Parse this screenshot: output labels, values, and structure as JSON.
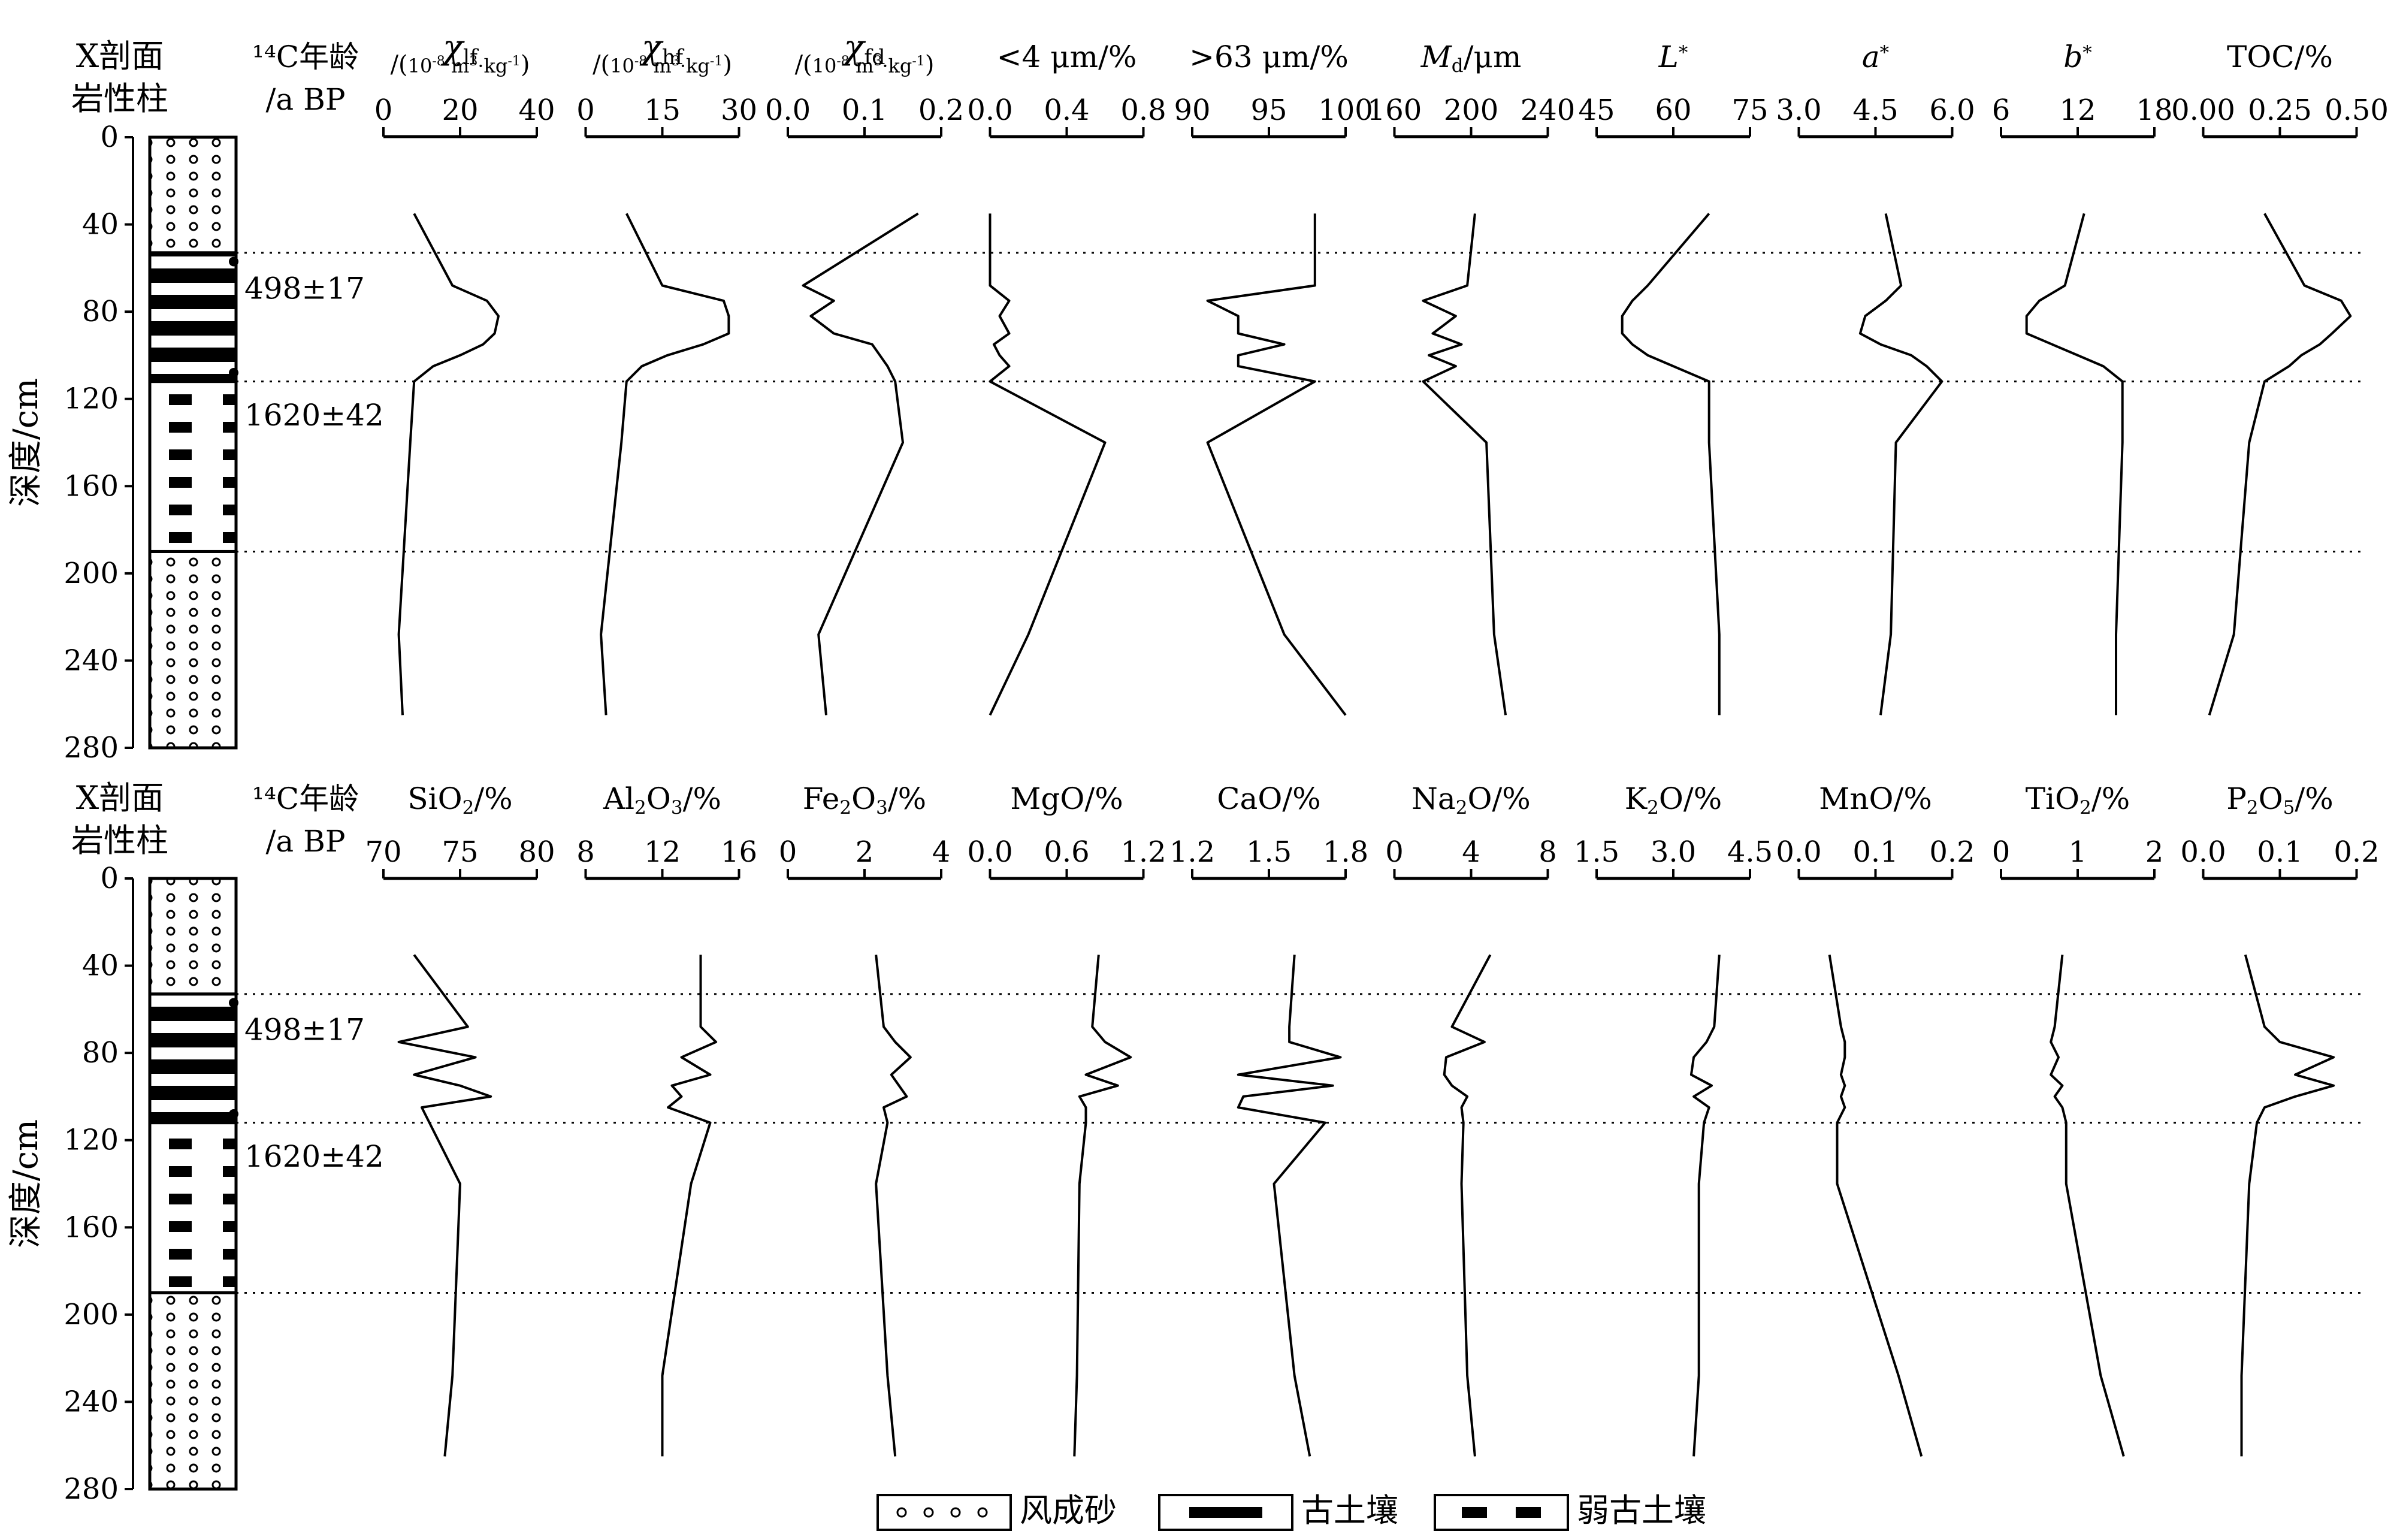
{
  "figure": {
    "section_header": [
      "X剖面",
      "岩性柱"
    ],
    "age_header": [
      "¹⁴C年龄",
      "/a BP"
    ],
    "depth_axis": {
      "label": "深度/cm",
      "ticks": [
        "0",
        "40",
        "80",
        "120",
        "160",
        "200",
        "240",
        "280"
      ]
    },
    "ages": [
      "498±17",
      "1620±42"
    ],
    "legend": {
      "aeolian": "风成砂",
      "paleosol": "古土壤",
      "weak_paleosol": "弱古土壤"
    }
  },
  "chart_data": {
    "type": "line",
    "depth_unit": "cm",
    "depth_range": [
      0,
      280
    ],
    "depth_ticks": [
      0,
      40,
      80,
      120,
      160,
      200,
      240,
      280
    ],
    "boundaries": [
      53,
      112,
      190
    ],
    "lithology": [
      {
        "top": 0,
        "bottom": 53,
        "type": "aeolian"
      },
      {
        "top": 53,
        "bottom": 112,
        "type": "paleosol"
      },
      {
        "top": 112,
        "bottom": 190,
        "type": "weak_paleosol"
      },
      {
        "top": 190,
        "bottom": 280,
        "type": "aeolian"
      }
    ],
    "ages": [
      {
        "depth": 57,
        "label": "498±17"
      },
      {
        "depth": 108,
        "label": "1620±42"
      }
    ],
    "depth": [
      35,
      68,
      75,
      82,
      90,
      95,
      100,
      105,
      112,
      140,
      228,
      265
    ],
    "panels": [
      {
        "series": [
          {
            "name": "χlf",
            "unit": "/(10⁻⁸ m³·kg⁻¹)",
            "range": [
              0,
              40
            ],
            "ticks": [
              "0",
              "20",
              "40"
            ],
            "values": [
              8,
              18,
              27,
              30,
              29,
              26,
              20,
              13,
              8,
              7,
              4,
              5
            ]
          },
          {
            "name": "χhf",
            "unit": "/(10⁻⁸ m³·kg⁻¹)",
            "range": [
              0,
              30
            ],
            "ticks": [
              "0",
              "15",
              "30"
            ],
            "values": [
              8,
              15,
              27,
              28,
              28,
              23,
              16,
              11,
              8,
              7,
              3,
              4
            ]
          },
          {
            "name": "χfd",
            "unit": "/(10⁻⁸ m³·kg⁻¹)",
            "range": [
              0,
              0.2
            ],
            "ticks": [
              "0.0",
              "0.1",
              "0.2"
            ],
            "values": [
              0.17,
              0.02,
              0.06,
              0.03,
              0.06,
              0.11,
              0.12,
              0.13,
              0.14,
              0.15,
              0.04,
              0.05
            ]
          },
          {
            "name": "<4 μm/%",
            "range": [
              0,
              0.8
            ],
            "ticks": [
              "0.0",
              "0.4",
              "0.8"
            ],
            "values": [
              0,
              0,
              0.1,
              0.05,
              0.1,
              0.02,
              0.05,
              0.1,
              0,
              0.6,
              0.2,
              0
            ]
          },
          {
            "name": ">63 μm/%",
            "range": [
              90,
              100
            ],
            "ticks": [
              "90",
              "95",
              "100"
            ],
            "values": [
              98,
              98,
              91,
              93,
              93,
              96,
              93,
              93,
              98,
              91,
              96,
              100
            ]
          },
          {
            "name": "Md/μm",
            "range": [
              160,
              240
            ],
            "ticks": [
              "160",
              "200",
              "240"
            ],
            "values": [
              202,
              198,
              175,
              192,
              180,
              195,
              178,
              192,
              175,
              208,
              212,
              218
            ]
          },
          {
            "name": "L*",
            "range": [
              45,
              75
            ],
            "ticks": [
              "45",
              "60",
              "75"
            ],
            "values": [
              67,
              55,
              52,
              50,
              50,
              52,
              55,
              60,
              67,
              67,
              69,
              69
            ]
          },
          {
            "name": "a*",
            "range": [
              3.0,
              6.0
            ],
            "ticks": [
              "3.0",
              "4.5",
              "6.0"
            ],
            "values": [
              4.7,
              5.0,
              4.7,
              4.3,
              4.2,
              4.6,
              5.2,
              5.5,
              5.8,
              4.9,
              4.8,
              4.6
            ]
          },
          {
            "name": "b*",
            "range": [
              6,
              18
            ],
            "ticks": [
              "6",
              "12",
              "18"
            ],
            "values": [
              12.5,
              11,
              9,
              8,
              8,
              10,
              12,
              14,
              15.5,
              15.5,
              15,
              15
            ]
          },
          {
            "name": "TOC/%",
            "range": [
              0,
              0.5
            ],
            "ticks": [
              "0.00",
              "0.25",
              "0.50"
            ],
            "values": [
              0.2,
              0.33,
              0.45,
              0.48,
              0.42,
              0.38,
              0.32,
              0.28,
              0.2,
              0.15,
              0.1,
              0.02
            ]
          }
        ]
      },
      {
        "series": [
          {
            "name": "SiO2/%",
            "range": [
              70,
              80
            ],
            "ticks": [
              "70",
              "75",
              "80"
            ],
            "values": [
              72,
              75.5,
              71,
              76,
              72,
              75,
              77,
              72.5,
              73,
              75,
              74.5,
              74
            ]
          },
          {
            "name": "Al2O3/%",
            "range": [
              8,
              16
            ],
            "ticks": [
              "8",
              "12",
              "16"
            ],
            "values": [
              14,
              14,
              14.8,
              13,
              14.5,
              12.5,
              13,
              12.3,
              14.5,
              13.5,
              12,
              12
            ]
          },
          {
            "name": "Fe2O3/%",
            "range": [
              0,
              4
            ],
            "ticks": [
              "0",
              "2",
              "4"
            ],
            "values": [
              2.3,
              2.5,
              2.8,
              3.2,
              2.7,
              2.9,
              3.1,
              2.5,
              2.6,
              2.3,
              2.6,
              2.8
            ]
          },
          {
            "name": "MgO/%",
            "range": [
              0,
              1.2
            ],
            "ticks": [
              "0.0",
              "0.6",
              "1.2"
            ],
            "values": [
              0.85,
              0.8,
              0.9,
              1.1,
              0.75,
              1.0,
              0.7,
              0.75,
              0.75,
              0.7,
              0.68,
              0.66
            ]
          },
          {
            "name": "CaO/%",
            "range": [
              1.2,
              1.8
            ],
            "ticks": [
              "1.2",
              "1.5",
              "1.8"
            ],
            "values": [
              1.6,
              1.58,
              1.58,
              1.78,
              1.38,
              1.75,
              1.4,
              1.38,
              1.72,
              1.52,
              1.6,
              1.66
            ]
          },
          {
            "name": "Na2O/%",
            "range": [
              0,
              8
            ],
            "ticks": [
              "0",
              "4",
              "8"
            ],
            "values": [
              5,
              3,
              4.7,
              2.7,
              2.6,
              3,
              3.8,
              3.5,
              3.6,
              3.5,
              3.8,
              4.2
            ]
          },
          {
            "name": "K2O/%",
            "range": [
              1.5,
              4.5
            ],
            "ticks": [
              "1.5",
              "3.0",
              "4.5"
            ],
            "values": [
              3.9,
              3.8,
              3.65,
              3.4,
              3.35,
              3.75,
              3.4,
              3.7,
              3.6,
              3.5,
              3.5,
              3.4
            ]
          },
          {
            "name": "MnO/%",
            "range": [
              0,
              0.2
            ],
            "ticks": [
              "0.0",
              "0.1",
              "0.2"
            ],
            "values": [
              0.04,
              0.055,
              0.06,
              0.06,
              0.055,
              0.06,
              0.055,
              0.06,
              0.05,
              0.05,
              0.13,
              0.16
            ]
          },
          {
            "name": "TiO2/%",
            "range": [
              0,
              2
            ],
            "ticks": [
              "0",
              "1",
              "2"
            ],
            "values": [
              0.8,
              0.7,
              0.65,
              0.75,
              0.65,
              0.8,
              0.7,
              0.8,
              0.85,
              0.85,
              1.3,
              1.6
            ]
          },
          {
            "name": "P2O5/%",
            "range": [
              0,
              0.2
            ],
            "ticks": [
              "0.0",
              "0.1",
              "0.2"
            ],
            "values": [
              0.055,
              0.08,
              0.1,
              0.17,
              0.12,
              0.17,
              0.12,
              0.08,
              0.07,
              0.06,
              0.05,
              0.05
            ]
          }
        ]
      }
    ]
  }
}
